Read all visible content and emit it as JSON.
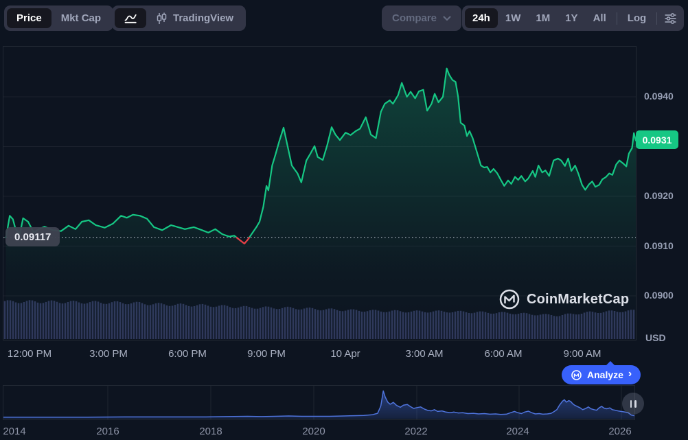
{
  "colors": {
    "background": "#0d1420",
    "green": "#16c784",
    "red": "#ea3943",
    "blue": "#3861fb",
    "mini_line": "#4f74dd",
    "control_bg": "#323546",
    "control_active_bg": "#16171f",
    "text_muted": "#a1a7bb",
    "text_dim": "#646b80",
    "volume": "#323c61",
    "grid": "rgba(255,255,255,0.06)"
  },
  "toolbar": {
    "price_label": "Price",
    "mktcap_label": "Mkt Cap",
    "tradingview_label": "TradingView",
    "compare_label": "Compare",
    "ranges": [
      "24h",
      "1W",
      "1M",
      "1Y",
      "All"
    ],
    "log_label": "Log",
    "active_range": "24h"
  },
  "chart": {
    "current_price": "0.0931",
    "baseline_price": "0.09117",
    "unit": "USD",
    "y_axis_labels": [
      "0.0940",
      "0.0920",
      "0.0910",
      "0.0900"
    ],
    "x_axis_labels": [
      "12:00 PM",
      "3:00 PM",
      "6:00 PM",
      "9:00 PM",
      "10 Apr",
      "3:00 AM",
      "6:00 AM",
      "9:00 AM"
    ]
  },
  "watermark": {
    "brand": "CoinMarketCap"
  },
  "analyze": {
    "label": "Analyze",
    "chevron": "›"
  },
  "mini_chart": {
    "years": [
      "2014",
      "2016",
      "2018",
      "2020",
      "2022",
      "2024",
      "2026"
    ]
  },
  "chart_data": {
    "type": "line",
    "title": "24h price chart (USD)",
    "x_axis": {
      "type": "time",
      "labels": [
        "12:00 PM",
        "3:00 PM",
        "6:00 PM",
        "9:00 PM",
        "10 Apr",
        "3:00 AM",
        "6:00 AM",
        "9:00 AM"
      ],
      "x_encoding": "fraction of visible 24h window"
    },
    "y_axis": {
      "unit": "USD",
      "ticks": [
        0.094,
        0.093,
        0.092,
        0.091,
        0.09
      ],
      "labeled_ticks": [
        0.094,
        0.092,
        0.091,
        0.09
      ],
      "range": [
        0.0891,
        0.095
      ]
    },
    "grid": true,
    "legend": false,
    "baseline": 0.09117,
    "current_price": 0.09312,
    "series": {
      "name": "Price (USD)",
      "color": "#16c784",
      "points": [
        [
          0.004,
          0.09117
        ],
        [
          0.01,
          0.09161
        ],
        [
          0.015,
          0.09154
        ],
        [
          0.019,
          0.09135
        ],
        [
          0.026,
          0.09124
        ],
        [
          0.031,
          0.09156
        ],
        [
          0.039,
          0.09149
        ],
        [
          0.048,
          0.09127
        ],
        [
          0.056,
          0.09134
        ],
        [
          0.065,
          0.09139
        ],
        [
          0.078,
          0.09132
        ],
        [
          0.091,
          0.0913
        ],
        [
          0.103,
          0.09141
        ],
        [
          0.114,
          0.09134
        ],
        [
          0.124,
          0.09149
        ],
        [
          0.135,
          0.09152
        ],
        [
          0.146,
          0.09142
        ],
        [
          0.16,
          0.09137
        ],
        [
          0.173,
          0.09145
        ],
        [
          0.186,
          0.09161
        ],
        [
          0.195,
          0.09157
        ],
        [
          0.205,
          0.09163
        ],
        [
          0.216,
          0.09161
        ],
        [
          0.227,
          0.09155
        ],
        [
          0.238,
          0.09138
        ],
        [
          0.251,
          0.09132
        ],
        [
          0.265,
          0.09142
        ],
        [
          0.276,
          0.09138
        ],
        [
          0.287,
          0.09134
        ],
        [
          0.301,
          0.09138
        ],
        [
          0.314,
          0.09132
        ],
        [
          0.324,
          0.09127
        ],
        [
          0.335,
          0.09134
        ],
        [
          0.346,
          0.09124
        ],
        [
          0.357,
          0.09119
        ],
        [
          0.365,
          0.09121
        ],
        [
          0.373,
          0.09113
        ],
        [
          0.381,
          0.09105
        ],
        [
          0.387,
          0.09114
        ],
        [
          0.394,
          0.09127
        ],
        [
          0.4,
          0.09138
        ],
        [
          0.405,
          0.09149
        ],
        [
          0.411,
          0.09179
        ],
        [
          0.416,
          0.09221
        ],
        [
          0.419,
          0.09212
        ],
        [
          0.425,
          0.09262
        ],
        [
          0.43,
          0.09283
        ],
        [
          0.436,
          0.0931
        ],
        [
          0.443,
          0.09338
        ],
        [
          0.449,
          0.09303
        ],
        [
          0.456,
          0.09262
        ],
        [
          0.465,
          0.09246
        ],
        [
          0.471,
          0.09228
        ],
        [
          0.479,
          0.09272
        ],
        [
          0.486,
          0.09287
        ],
        [
          0.492,
          0.09301
        ],
        [
          0.497,
          0.09279
        ],
        [
          0.505,
          0.09273
        ],
        [
          0.512,
          0.09303
        ],
        [
          0.519,
          0.09339
        ],
        [
          0.525,
          0.09324
        ],
        [
          0.532,
          0.09313
        ],
        [
          0.541,
          0.09328
        ],
        [
          0.549,
          0.09323
        ],
        [
          0.557,
          0.09331
        ],
        [
          0.564,
          0.09336
        ],
        [
          0.573,
          0.09359
        ],
        [
          0.581,
          0.09324
        ],
        [
          0.589,
          0.09317
        ],
        [
          0.597,
          0.0937
        ],
        [
          0.603,
          0.09386
        ],
        [
          0.611,
          0.09393
        ],
        [
          0.616,
          0.09386
        ],
        [
          0.624,
          0.09403
        ],
        [
          0.63,
          0.09428
        ],
        [
          0.638,
          0.094
        ],
        [
          0.644,
          0.0941
        ],
        [
          0.651,
          0.09397
        ],
        [
          0.657,
          0.09411
        ],
        [
          0.664,
          0.09414
        ],
        [
          0.67,
          0.09372
        ],
        [
          0.677,
          0.09386
        ],
        [
          0.682,
          0.09406
        ],
        [
          0.688,
          0.09389
        ],
        [
          0.695,
          0.094
        ],
        [
          0.701,
          0.09457
        ],
        [
          0.705,
          0.09444
        ],
        [
          0.71,
          0.09434
        ],
        [
          0.715,
          0.0943
        ],
        [
          0.719,
          0.094
        ],
        [
          0.723,
          0.09348
        ],
        [
          0.729,
          0.09342
        ],
        [
          0.733,
          0.09321
        ],
        [
          0.737,
          0.09331
        ],
        [
          0.742,
          0.09317
        ],
        [
          0.748,
          0.09292
        ],
        [
          0.755,
          0.09262
        ],
        [
          0.76,
          0.09258
        ],
        [
          0.765,
          0.09259
        ],
        [
          0.77,
          0.09248
        ],
        [
          0.775,
          0.09255
        ],
        [
          0.781,
          0.09246
        ],
        [
          0.787,
          0.09232
        ],
        [
          0.792,
          0.09221
        ],
        [
          0.798,
          0.09232
        ],
        [
          0.803,
          0.09225
        ],
        [
          0.809,
          0.09239
        ],
        [
          0.814,
          0.09233
        ],
        [
          0.819,
          0.09241
        ],
        [
          0.825,
          0.0923
        ],
        [
          0.83,
          0.09236
        ],
        [
          0.837,
          0.09251
        ],
        [
          0.841,
          0.09239
        ],
        [
          0.846,
          0.09262
        ],
        [
          0.852,
          0.09248
        ],
        [
          0.857,
          0.09252
        ],
        [
          0.863,
          0.09241
        ],
        [
          0.87,
          0.09272
        ],
        [
          0.877,
          0.09276
        ],
        [
          0.882,
          0.09272
        ],
        [
          0.888,
          0.09261
        ],
        [
          0.893,
          0.09276
        ],
        [
          0.898,
          0.09251
        ],
        [
          0.904,
          0.09262
        ],
        [
          0.909,
          0.09246
        ],
        [
          0.915,
          0.09223
        ],
        [
          0.92,
          0.09213
        ],
        [
          0.926,
          0.09224
        ],
        [
          0.931,
          0.0923
        ],
        [
          0.936,
          0.09219
        ],
        [
          0.942,
          0.09223
        ],
        [
          0.947,
          0.09234
        ],
        [
          0.953,
          0.09239
        ],
        [
          0.958,
          0.09246
        ],
        [
          0.963,
          0.09243
        ],
        [
          0.969,
          0.09264
        ],
        [
          0.974,
          0.09272
        ],
        [
          0.98,
          0.09266
        ],
        [
          0.985,
          0.0926
        ],
        [
          0.989,
          0.09286
        ],
        [
          0.994,
          0.09297
        ],
        [
          0.997,
          0.09327
        ],
        [
          1.0,
          0.09312
        ]
      ]
    },
    "volume_profile": [
      [
        0.0,
        0.95
      ],
      [
        0.05,
        0.95
      ],
      [
        0.1,
        0.94
      ],
      [
        0.15,
        0.93
      ],
      [
        0.2,
        0.92
      ],
      [
        0.25,
        0.88
      ],
      [
        0.3,
        0.86
      ],
      [
        0.33,
        0.85
      ],
      [
        0.36,
        0.82
      ],
      [
        0.4,
        0.8
      ],
      [
        0.45,
        0.79
      ],
      [
        0.5,
        0.76
      ],
      [
        0.55,
        0.73
      ],
      [
        0.6,
        0.71
      ],
      [
        0.65,
        0.7
      ],
      [
        0.7,
        0.7
      ],
      [
        0.75,
        0.68
      ],
      [
        0.8,
        0.66
      ],
      [
        0.85,
        0.62
      ],
      [
        0.88,
        0.6
      ],
      [
        0.9,
        0.64
      ],
      [
        0.93,
        0.68
      ],
      [
        0.96,
        0.7
      ],
      [
        1.0,
        0.72
      ]
    ],
    "range_selector": {
      "type": "area",
      "x_labels": [
        "2014",
        "2016",
        "2018",
        "2020",
        "2022",
        "2024",
        "2026"
      ],
      "points": [
        [
          0.0,
          0.05
        ],
        [
          0.061,
          0.05
        ],
        [
          0.126,
          0.05
        ],
        [
          0.191,
          0.06
        ],
        [
          0.256,
          0.06
        ],
        [
          0.321,
          0.06
        ],
        [
          0.354,
          0.07
        ],
        [
          0.387,
          0.08
        ],
        [
          0.408,
          0.07
        ],
        [
          0.43,
          0.08
        ],
        [
          0.452,
          0.09
        ],
        [
          0.473,
          0.08
        ],
        [
          0.495,
          0.08
        ],
        [
          0.517,
          0.08
        ],
        [
          0.539,
          0.09
        ],
        [
          0.555,
          0.1
        ],
        [
          0.571,
          0.11
        ],
        [
          0.584,
          0.13
        ],
        [
          0.593,
          0.18
        ],
        [
          0.598,
          0.42
        ],
        [
          0.602,
          0.92
        ],
        [
          0.605,
          0.72
        ],
        [
          0.609,
          0.55
        ],
        [
          0.613,
          0.48
        ],
        [
          0.618,
          0.54
        ],
        [
          0.623,
          0.44
        ],
        [
          0.629,
          0.38
        ],
        [
          0.634,
          0.45
        ],
        [
          0.64,
          0.47
        ],
        [
          0.645,
          0.4
        ],
        [
          0.65,
          0.34
        ],
        [
          0.656,
          0.37
        ],
        [
          0.661,
          0.39
        ],
        [
          0.667,
          0.32
        ],
        [
          0.672,
          0.28
        ],
        [
          0.678,
          0.26
        ],
        [
          0.683,
          0.3
        ],
        [
          0.688,
          0.24
        ],
        [
          0.695,
          0.26
        ],
        [
          0.701,
          0.22
        ],
        [
          0.708,
          0.2
        ],
        [
          0.714,
          0.22
        ],
        [
          0.721,
          0.19
        ],
        [
          0.728,
          0.2
        ],
        [
          0.736,
          0.17
        ],
        [
          0.745,
          0.18
        ],
        [
          0.753,
          0.16
        ],
        [
          0.762,
          0.17
        ],
        [
          0.771,
          0.15
        ],
        [
          0.78,
          0.16
        ],
        [
          0.788,
          0.14
        ],
        [
          0.797,
          0.15
        ],
        [
          0.804,
          0.2
        ],
        [
          0.81,
          0.24
        ],
        [
          0.815,
          0.2
        ],
        [
          0.821,
          0.17
        ],
        [
          0.826,
          0.22
        ],
        [
          0.832,
          0.25
        ],
        [
          0.837,
          0.2
        ],
        [
          0.843,
          0.16
        ],
        [
          0.849,
          0.17
        ],
        [
          0.855,
          0.15
        ],
        [
          0.862,
          0.16
        ],
        [
          0.868,
          0.18
        ],
        [
          0.873,
          0.24
        ],
        [
          0.877,
          0.3
        ],
        [
          0.881,
          0.44
        ],
        [
          0.886,
          0.58
        ],
        [
          0.889,
          0.63
        ],
        [
          0.892,
          0.55
        ],
        [
          0.896,
          0.6
        ],
        [
          0.899,
          0.57
        ],
        [
          0.902,
          0.5
        ],
        [
          0.905,
          0.45
        ],
        [
          0.91,
          0.4
        ],
        [
          0.914,
          0.36
        ],
        [
          0.918,
          0.3
        ],
        [
          0.923,
          0.34
        ],
        [
          0.927,
          0.39
        ],
        [
          0.931,
          0.33
        ],
        [
          0.936,
          0.3
        ],
        [
          0.94,
          0.28
        ],
        [
          0.944,
          0.36
        ],
        [
          0.948,
          0.41
        ],
        [
          0.952,
          0.35
        ],
        [
          0.956,
          0.33
        ],
        [
          0.961,
          0.36
        ],
        [
          0.965,
          0.3
        ],
        [
          0.97,
          0.28
        ],
        [
          0.974,
          0.26
        ],
        [
          0.979,
          0.24
        ],
        [
          0.985,
          0.22
        ],
        [
          0.99,
          0.2
        ],
        [
          0.995,
          0.12
        ],
        [
          1.0,
          0.1
        ]
      ]
    }
  }
}
